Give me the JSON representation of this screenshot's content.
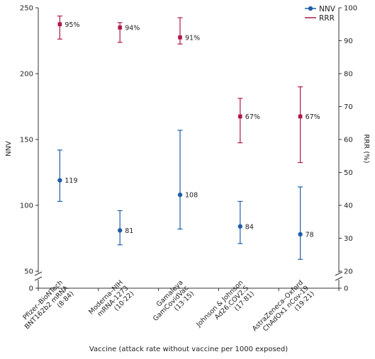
{
  "chart_data": {
    "type": "scatter",
    "xlabel": "Vaccine (attack rate without vaccine per 1000 exposed)",
    "ylabel_left": "NNV",
    "ylabel_right": "RRR (%)",
    "y_left_ticks": [
      0,
      50,
      100,
      150,
      200,
      250
    ],
    "y_right_ticks": [
      0,
      20,
      30,
      40,
      50,
      60,
      70,
      80,
      90,
      100
    ],
    "y_left_range": [
      50,
      250
    ],
    "y_right_range": [
      20,
      100
    ],
    "axis_break": true,
    "legend": {
      "placement": "top-right",
      "entries": [
        "NNV",
        "RRR"
      ]
    },
    "colors": {
      "NNV": "#1f5ea8",
      "RRR": "#b0174a"
    },
    "categories": [
      {
        "line1": "Pfizer–BioNTech",
        "line2": "BNT162b2 mRNA",
        "rate": "(8·84)"
      },
      {
        "line1": "Moderna–NIH",
        "line2": "mRNA-1273",
        "rate": "(10·22)"
      },
      {
        "line1": "Gamaleya",
        "line2": "GamCovidVac",
        "rate": "(13·15)"
      },
      {
        "line1": "Johnson & Johnson",
        "line2": "Ad26.COV2.S",
        "rate": "(17·81)"
      },
      {
        "line1": "AstraZeneca–Oxford",
        "line2": "ChAdOx1 nCov-19",
        "rate": "(19·21)"
      }
    ],
    "series": [
      {
        "name": "NNV",
        "axis": "left",
        "values": [
          119,
          81,
          108,
          84,
          78
        ],
        "lower": [
          103,
          70,
          82,
          71,
          59
        ],
        "upper": [
          142,
          96,
          157,
          103,
          114
        ],
        "labels": [
          "119",
          "81",
          "108",
          "84",
          "78"
        ]
      },
      {
        "name": "RRR",
        "axis": "right",
        "values": [
          95,
          94,
          91,
          67,
          67
        ],
        "lower": [
          90.5,
          89.5,
          89,
          59,
          53
        ],
        "upper": [
          97.5,
          95.5,
          97,
          72.5,
          76
        ],
        "labels": [
          "95%",
          "94%",
          "91%",
          "67%",
          "67%"
        ]
      }
    ]
  }
}
